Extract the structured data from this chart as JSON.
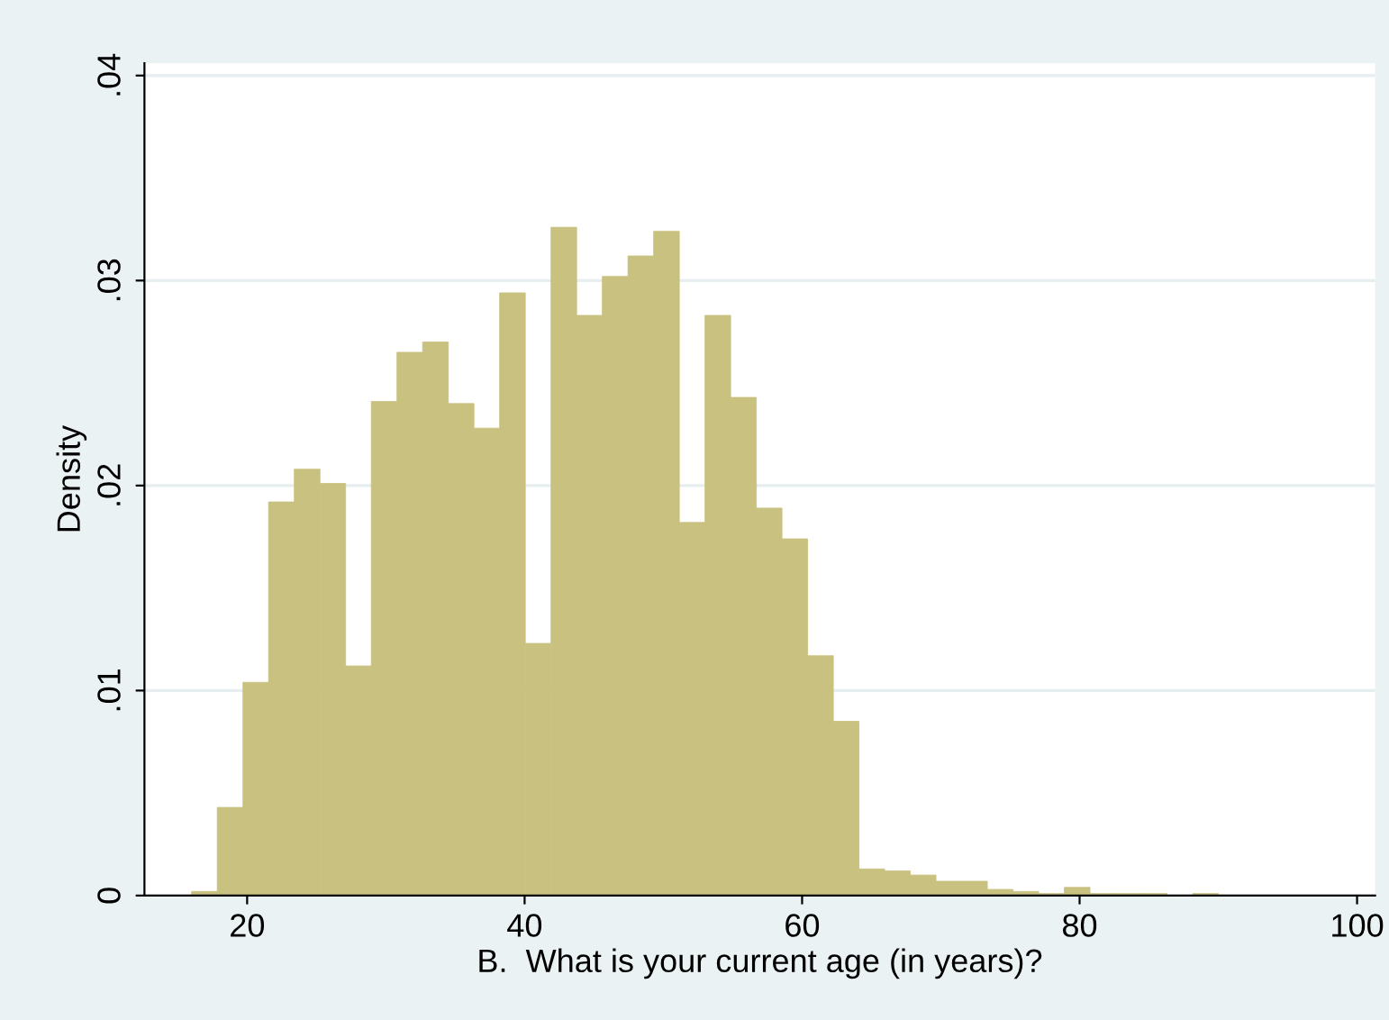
{
  "chart_data": {
    "type": "histogram",
    "xlabel": "B.  What is your current age (in years)?",
    "ylabel": "Density",
    "bins": [
      16,
      17.85,
      19.7,
      21.55,
      23.4,
      25.25,
      27.1,
      28.95,
      30.8,
      32.65,
      34.5,
      36.35,
      38.2,
      40.05,
      41.9,
      43.75,
      45.6,
      47.45,
      49.3,
      51.15,
      53,
      54.85,
      56.7,
      58.55,
      60.4,
      62.25,
      64.1,
      65.95,
      67.8,
      69.65,
      71.5,
      73.35,
      75.2,
      77.05,
      78.9,
      80.75,
      82.6,
      84.45,
      86.3,
      88.15,
      90
    ],
    "values": [
      0.0002,
      0.0043,
      0.0104,
      0.0192,
      0.0208,
      0.0201,
      0.0112,
      0.0241,
      0.0265,
      0.027,
      0.024,
      0.0228,
      0.0294,
      0.0123,
      0.0326,
      0.0283,
      0.0302,
      0.0312,
      0.0324,
      0.0182,
      0.0283,
      0.0243,
      0.0189,
      0.0174,
      0.0117,
      0.0085,
      0.0013,
      0.0012,
      0.001,
      0.0007,
      0.0007,
      0.0003,
      0.0002,
      0.0001,
      0.0004,
      0.0001,
      0.0001,
      0.0001,
      0,
      0.0001
    ],
    "color": "#c9c17f",
    "xlim": [
      12.6,
      101.3
    ],
    "ylim": [
      0,
      0.0406
    ],
    "xticks": [
      20,
      40,
      60,
      80,
      100
    ],
    "yticks": [
      0,
      {
        "value": 0.01,
        "label": ".01"
      },
      {
        "value": 0.02,
        "label": ".02"
      },
      {
        "value": 0.03,
        "label": ".03"
      },
      {
        "value": 0.04,
        "label": ".04"
      }
    ],
    "grid": "y"
  }
}
